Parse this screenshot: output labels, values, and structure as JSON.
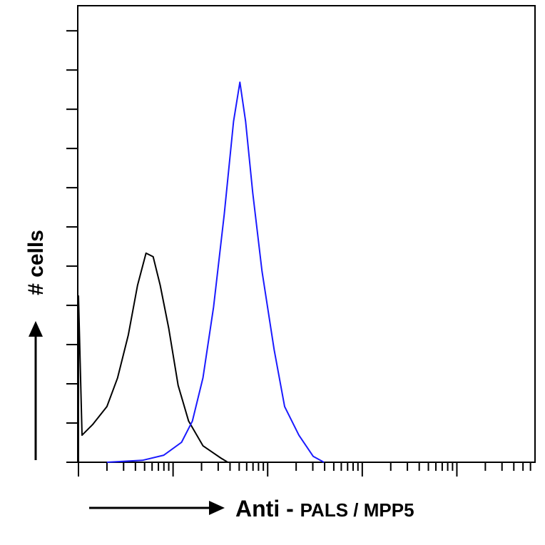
{
  "chart_data": {
    "type": "line",
    "y_label": "# cells",
    "x_label": "Anti - ",
    "x_label_target": "PALS / MPP5",
    "xscale": "log",
    "xlim": [
      1,
      67000
    ],
    "xticks": [
      1,
      10,
      100,
      1000,
      10000
    ],
    "ylim": [
      0,
      11.64
    ],
    "yticks": [
      0,
      1,
      2,
      3,
      4,
      5,
      6,
      7,
      8,
      9,
      10,
      11
    ],
    "series": [
      {
        "color": "#000000",
        "x": [
          1,
          1,
          1.09,
          1.41,
          2.0,
          2.59,
          3.36,
          4.21,
          5.18,
          6.16,
          7.32,
          9.0,
          11.3,
          14.6,
          20.7,
          31.9,
          37.9
        ],
        "values": [
          0,
          4.24,
          0.69,
          0.96,
          1.42,
          2.15,
          3.24,
          4.51,
          5.33,
          5.24,
          4.51,
          3.42,
          1.96,
          1.05,
          0.42,
          0.11,
          0
        ]
      },
      {
        "color": "#1a1aff",
        "x": [
          2.0,
          4.75,
          7.98,
          12.3,
          16.0,
          20.7,
          26.8,
          34.8,
          43.6,
          50.9,
          58.5,
          69.5,
          87.1,
          117,
          151,
          214,
          303,
          393
        ],
        "values": [
          0,
          0.05,
          0.18,
          0.51,
          1.05,
          2.15,
          3.96,
          6.33,
          8.69,
          9.69,
          8.69,
          6.87,
          4.87,
          2.87,
          1.42,
          0.69,
          0.15,
          0
        ]
      }
    ]
  }
}
